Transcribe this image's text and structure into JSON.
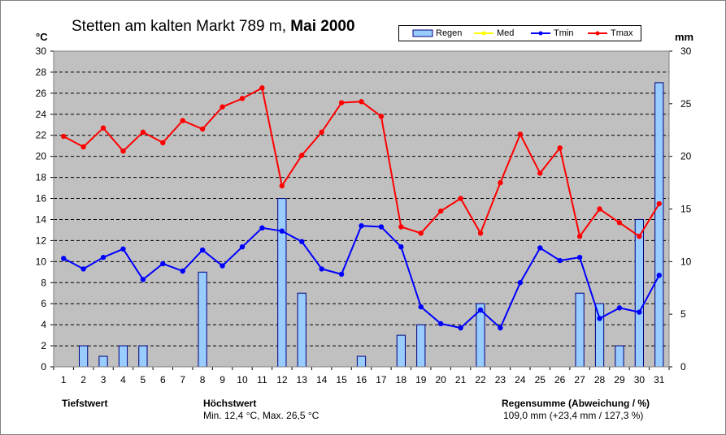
{
  "title": {
    "main": "Stetten am kalten Markt  789 m, ",
    "bold": "Mai 2000"
  },
  "units": {
    "left": "°C",
    "right": "mm"
  },
  "legend": {
    "rain": "Regen",
    "med": "Med",
    "tmin": "Tmin",
    "tmax": "Tmax"
  },
  "colors": {
    "rain_fill": "#99CCFF",
    "rain_stroke": "#000080",
    "med": "#FFFF00",
    "tmin": "#0000FF",
    "tmax": "#FF0000",
    "plot_bg": "#C0C0C0"
  },
  "footer": {
    "tiefstwert_label": "Tiefstwert",
    "hoechstwert_label": "Höchstwert",
    "hoechstwert_value": "Min. 12,4 °C, Max. 26,5 °C",
    "regen_label": "Regensumme (Abweichung / %)",
    "regen_value": "109,0 mm (+23,4 mm / 127,3 %)"
  },
  "chart_data": {
    "type": "bar",
    "x": [
      1,
      2,
      3,
      4,
      5,
      6,
      7,
      8,
      9,
      10,
      11,
      12,
      13,
      14,
      15,
      16,
      17,
      18,
      19,
      20,
      21,
      22,
      23,
      24,
      25,
      26,
      27,
      28,
      29,
      30,
      31
    ],
    "y_left_range": [
      0,
      30
    ],
    "y_left_ticks": [
      0,
      2,
      4,
      6,
      8,
      10,
      12,
      14,
      16,
      18,
      20,
      22,
      24,
      26,
      28,
      30
    ],
    "y_right_range": [
      0,
      30
    ],
    "y_right_ticks": [
      0,
      5,
      10,
      15,
      20,
      25,
      30
    ],
    "grid": true,
    "legend_position": "top-right",
    "series": [
      {
        "name": "Regen",
        "type": "bar",
        "axis": "right",
        "values": [
          0,
          2,
          1,
          2,
          2,
          0,
          0,
          9,
          0,
          0,
          0,
          16,
          7,
          0,
          0,
          1,
          0,
          3,
          4,
          0,
          0,
          6,
          0,
          0,
          0,
          0,
          7,
          6,
          2,
          14,
          27
        ]
      },
      {
        "name": "Tmin",
        "type": "line",
        "axis": "left",
        "values": [
          10.3,
          9.3,
          10.4,
          11.2,
          8.3,
          9.8,
          9.1,
          11.1,
          9.6,
          11.4,
          13.2,
          12.9,
          11.9,
          9.3,
          8.8,
          13.4,
          13.3,
          11.4,
          5.7,
          4.1,
          3.7,
          5.4,
          3.7,
          8.0,
          11.3,
          10.1,
          10.4,
          4.6,
          5.6,
          5.2,
          8.7
        ]
      },
      {
        "name": "Tmax",
        "type": "line",
        "axis": "left",
        "values": [
          21.9,
          20.9,
          22.7,
          20.5,
          22.3,
          21.3,
          23.4,
          22.6,
          24.7,
          25.5,
          26.5,
          17.2,
          20.1,
          22.3,
          25.1,
          25.2,
          23.8,
          13.3,
          12.7,
          14.8,
          16.0,
          12.7,
          17.5,
          22.1,
          18.4,
          20.8,
          12.4,
          15.0,
          13.7,
          12.4,
          15.5
        ]
      }
    ]
  }
}
